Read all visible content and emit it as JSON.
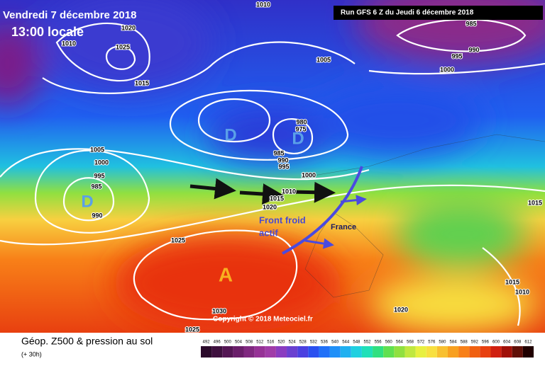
{
  "header": {
    "date": "Vendredi 7 décembre 2018",
    "time": "13:00 locale",
    "run": "Run GFS 6 Z du Jeudi 6 décembre 2018"
  },
  "footer": {
    "title": "Géop. Z500 & pression au sol",
    "lead": "(+ 30h)",
    "copyright": "Copyright © 2018 Meteociel.fr"
  },
  "annotations": {
    "front": "Front froid",
    "front_2": "actif",
    "country": "France",
    "high": "A",
    "lows": [
      "D",
      "D",
      "D"
    ]
  },
  "isobar_labels": [
    "1010",
    "1020",
    "1010",
    "1025",
    "1015",
    "1005",
    "985",
    "990",
    "995",
    "1000",
    "1005",
    "1000",
    "995",
    "985",
    "990",
    "980",
    "975",
    "985",
    "990",
    "995",
    "1000",
    "1010",
    "1015",
    "1020",
    "1025",
    "1030",
    "1025",
    "1020",
    "1015",
    "1010",
    "1015"
  ],
  "scale": {
    "labels": [
      492,
      496,
      500,
      504,
      508,
      512,
      516,
      520,
      524,
      528,
      532,
      536,
      540,
      544,
      548,
      552,
      556,
      560,
      564,
      568,
      572,
      576,
      580,
      584,
      588,
      592,
      596,
      600,
      604,
      608,
      612
    ],
    "colors": [
      "#2a0a2a",
      "#3e103e",
      "#541654",
      "#6a1e6a",
      "#802880",
      "#963296",
      "#a03ca8",
      "#8a3cc0",
      "#6a40d0",
      "#4a40e0",
      "#2a50f0",
      "#2070f8",
      "#2090f8",
      "#20b0f0",
      "#20d0e0",
      "#20e0b8",
      "#30e080",
      "#60e050",
      "#90e040",
      "#c0e840",
      "#e8f040",
      "#f8e040",
      "#f8c030",
      "#f8a020",
      "#f88018",
      "#f06010",
      "#e84010",
      "#d02010",
      "#a01008",
      "#601008",
      "#200000"
    ]
  }
}
